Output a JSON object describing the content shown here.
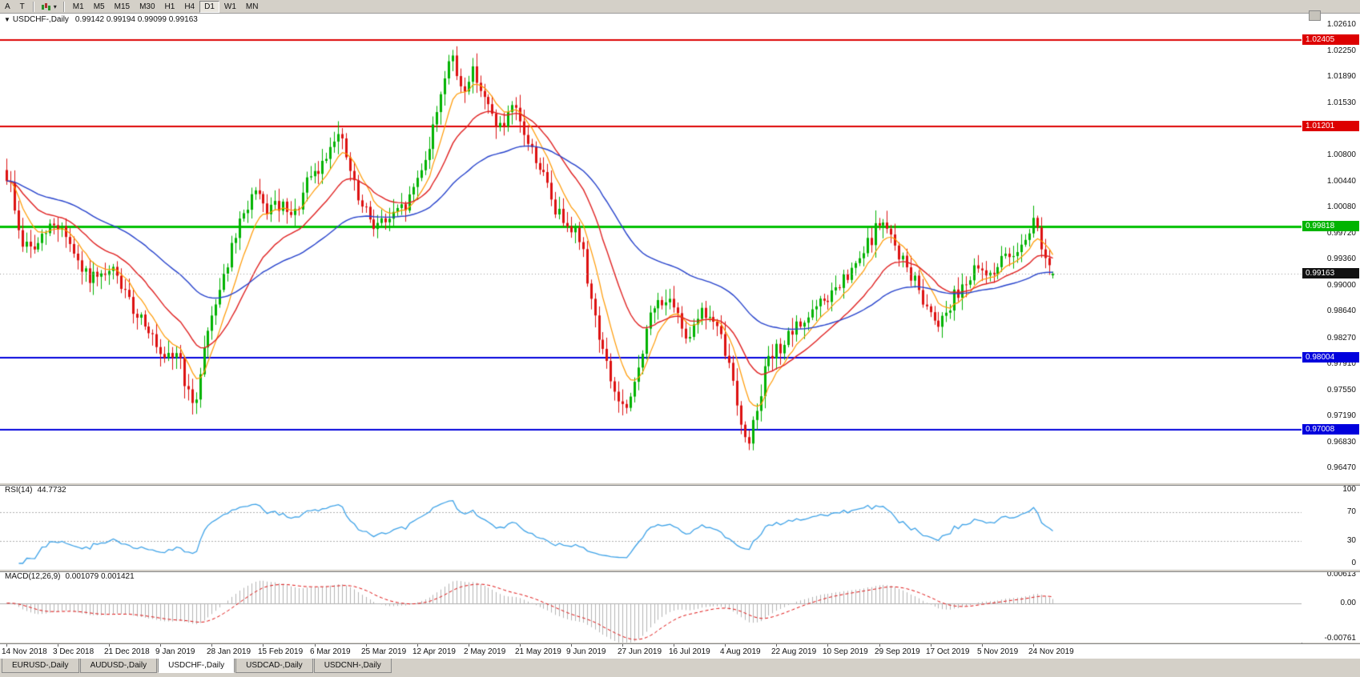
{
  "toolbar": {
    "left_buttons": [
      "A",
      "T"
    ],
    "dropdown_caret": "▾",
    "timeframes": [
      "M1",
      "M5",
      "M15",
      "M30",
      "H1",
      "H4",
      "D1",
      "W1",
      "MN"
    ],
    "active_timeframe": "D1"
  },
  "chart_header": {
    "collapse_icon": "▼",
    "title": "USDCHF-,Daily",
    "ohlc": "0.99142 0.99194 0.99099 0.99163"
  },
  "chart_data": {
    "type": "candlestick",
    "symbol": "USDCHF-",
    "timeframe": "Daily",
    "current_bar": {
      "open": 0.99142,
      "high": 0.99194,
      "low": 0.99099,
      "close": 0.99163
    },
    "bar_count": 266,
    "bar_spacing": 4.93,
    "seed": 9,
    "clamp_high": 1.0236,
    "clamp_low": 0.9652,
    "colors": {
      "panel_bg": "#ffffff",
      "candle_up": "#00b200",
      "candle_down": "#dd1111"
    },
    "price_axis": {
      "view_max": 1.02765,
      "view_min": 0.96275,
      "ticks": [
        "1.02610",
        "1.02250",
        "1.01890",
        "1.01530",
        "1.00800",
        "1.00440",
        "1.00080",
        "0.99720",
        "0.99360",
        "0.99000",
        "0.98640",
        "0.98270",
        "0.97910",
        "0.97550",
        "0.97190",
        "0.96830",
        "0.96470"
      ],
      "badges": [
        {
          "text": "1.02405",
          "value": 1.02405,
          "color": "#dd0000"
        },
        {
          "text": "1.01201",
          "value": 1.01201,
          "color": "#dd0000"
        },
        {
          "text": "0.99818",
          "value": 0.99818,
          "color": "#00b400"
        },
        {
          "text": "0.99163",
          "value": 0.99163,
          "color": "#111111"
        },
        {
          "text": "0.98004",
          "value": 0.98004,
          "color": "#0000dd"
        },
        {
          "text": "0.97008",
          "value": 0.97008,
          "color": "#0000dd"
        }
      ]
    },
    "levels": [
      {
        "value": 1.02405,
        "color": "#dd0000",
        "width": 2,
        "type": "resistance"
      },
      {
        "value": 1.01201,
        "color": "#dd0000",
        "width": 2,
        "type": "resistance"
      },
      {
        "value": 0.99818,
        "color": "#00c000",
        "width": 3,
        "type": "pivot"
      },
      {
        "value": 0.98004,
        "color": "#0000dd",
        "width": 2,
        "type": "support"
      },
      {
        "value": 0.97008,
        "color": "#0000dd",
        "width": 2,
        "type": "support"
      }
    ],
    "moving_averages": [
      {
        "period": 8,
        "color": "#ff9900",
        "width": 1.2
      },
      {
        "period": 21,
        "color": "#e02020",
        "width": 1.4
      },
      {
        "period": 55,
        "color": "#2642cc",
        "width": 1.4
      }
    ],
    "close_anchors": [
      [
        0,
        1.006
      ],
      [
        2,
        1.003
      ],
      [
        4,
        0.996
      ],
      [
        8,
        0.995
      ],
      [
        12,
        0.9985
      ],
      [
        15,
        0.998
      ],
      [
        19,
        0.992
      ],
      [
        24,
        0.9905
      ],
      [
        28,
        0.992
      ],
      [
        32,
        0.987
      ],
      [
        36,
        0.985
      ],
      [
        40,
        0.979
      ],
      [
        44,
        0.981
      ],
      [
        46,
        0.976
      ],
      [
        48,
        0.9722
      ],
      [
        50,
        0.98
      ],
      [
        53,
        0.987
      ],
      [
        57,
        0.994
      ],
      [
        60,
        0.999
      ],
      [
        63,
        1.003
      ],
      [
        66,
        1.0005
      ],
      [
        70,
        1.001
      ],
      [
        73,
        0.999
      ],
      [
        77,
        1.0045
      ],
      [
        80,
        1.006
      ],
      [
        84,
        1.0115
      ],
      [
        86,
        1.009
      ],
      [
        90,
        1.001
      ],
      [
        94,
        0.9985
      ],
      [
        98,
        0.9992
      ],
      [
        102,
        1.0012
      ],
      [
        105,
        1.0055
      ],
      [
        108,
        1.01
      ],
      [
        111,
        1.018
      ],
      [
        113,
        1.0218
      ],
      [
        116,
        1.017
      ],
      [
        119,
        1.02
      ],
      [
        122,
        1.015
      ],
      [
        126,
        1.0115
      ],
      [
        129,
        1.0145
      ],
      [
        132,
        1.0105
      ],
      [
        136,
        1.006
      ],
      [
        140,
        1.0
      ],
      [
        143,
        0.999
      ],
      [
        146,
        0.996
      ],
      [
        149,
        0.987
      ],
      [
        152,
        0.98
      ],
      [
        155,
        0.9745
      ],
      [
        158,
        0.9722
      ],
      [
        161,
        0.98
      ],
      [
        164,
        0.9865
      ],
      [
        167,
        0.9885
      ],
      [
        170,
        0.986
      ],
      [
        173,
        0.983
      ],
      [
        176,
        0.9865
      ],
      [
        179,
        0.9855
      ],
      [
        182,
        0.982
      ],
      [
        185,
        0.976
      ],
      [
        188,
        0.9672
      ],
      [
        190,
        0.972
      ],
      [
        193,
        0.979
      ],
      [
        196,
        0.9812
      ],
      [
        199,
        0.983
      ],
      [
        203,
        0.9855
      ],
      [
        207,
        0.9875
      ],
      [
        211,
        0.9895
      ],
      [
        215,
        0.992
      ],
      [
        219,
        0.996
      ],
      [
        222,
        0.9992
      ],
      [
        225,
        0.996
      ],
      [
        228,
        0.993
      ],
      [
        231,
        0.99
      ],
      [
        234,
        0.9868
      ],
      [
        237,
        0.985
      ],
      [
        240,
        0.988
      ],
      [
        243,
        0.9905
      ],
      [
        246,
        0.992
      ],
      [
        249,
        0.9915
      ],
      [
        252,
        0.993
      ],
      [
        255,
        0.9945
      ],
      [
        258,
        0.9962
      ],
      [
        261,
        0.9992
      ],
      [
        263,
        0.995
      ],
      [
        265,
        0.9916
      ]
    ],
    "x_axis_dates": [
      "14 Nov 2018",
      "3 Dec 2018",
      "21 Dec 2018",
      "9 Jan 2019",
      "28 Jan 2019",
      "15 Feb 2019",
      "6 Mar 2019",
      "25 Mar 2019",
      "12 Apr 2019",
      "2 May 2019",
      "21 May 2019",
      "9 Jun 2019",
      "27 Jun 2019",
      "16 Jul 2019",
      "4 Aug 2019",
      "22 Aug 2019",
      "10 Sep 2019",
      "29 Sep 2019",
      "17 Oct 2019",
      "5 Nov 2019",
      "24 Nov 2019"
    ],
    "label_every_n_bars": 13,
    "indicators": {
      "rsi": {
        "label": "RSI(14)",
        "value": "44.7732",
        "period": 14,
        "levels": [
          100,
          70,
          30,
          0
        ],
        "color": "#3fa3e8"
      },
      "macd": {
        "label": "MACD(12,26,9)",
        "values": "0.001079 0.001421",
        "fast": 12,
        "slow": 26,
        "signal": 9,
        "histogram_color": "#b4b4b4",
        "signal_color": "#e01010",
        "scale_max": 0.00613,
        "scale_min": -0.00761,
        "ticks": [
          {
            "text": "0.00613",
            "value": 0.00613
          },
          {
            "text": "0.00",
            "value": 0
          },
          {
            "text": "-0.00761",
            "value": -0.00761
          }
        ]
      }
    }
  },
  "bottom_tabs": [
    {
      "label": "EURUSD-,Daily",
      "active": false
    },
    {
      "label": "AUDUSD-,Daily",
      "active": false
    },
    {
      "label": "USDCHF-,Daily",
      "active": true
    },
    {
      "label": "USDCAD-,Daily",
      "active": false
    },
    {
      "label": "USDCNH-,Daily",
      "active": false
    }
  ]
}
